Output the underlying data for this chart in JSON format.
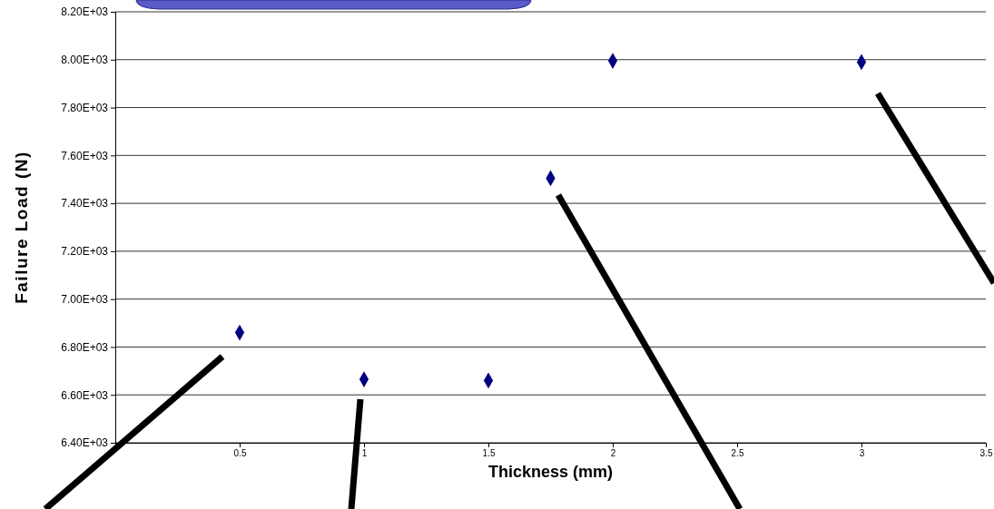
{
  "chart_data": {
    "type": "scatter",
    "xlabel": "Thickness (mm)",
    "ylabel": "Failure Load (N)",
    "x": [
      0.5,
      1,
      1.5,
      1.75,
      2,
      3
    ],
    "series": [
      {
        "color": "#000080",
        "values": [
          6860,
          6665,
          6660,
          7505,
          7995,
          7990
        ]
      }
    ],
    "xlim": [
      0,
      3.5
    ],
    "xticks": [
      0.5,
      1,
      1.5,
      2,
      2.5,
      3,
      3.5
    ],
    "ylim": [
      6400,
      8200
    ],
    "yticks": [
      {
        "value": 6400,
        "label": "6.40E+03"
      },
      {
        "value": 6600,
        "label": "6.60E+03"
      },
      {
        "value": 6800,
        "label": "6.80E+03"
      },
      {
        "value": 7000,
        "label": "7.00E+03"
      },
      {
        "value": 7200,
        "label": "7.20E+03"
      },
      {
        "value": 7400,
        "label": "7.40E+03"
      },
      {
        "value": 7600,
        "label": "7.60E+03"
      },
      {
        "value": 7800,
        "label": "7.80E+03"
      },
      {
        "value": 8000,
        "label": "8.00E+03"
      },
      {
        "value": 8200,
        "label": "8.20E+03"
      }
    ],
    "grid": "y",
    "marker": "diamond"
  }
}
